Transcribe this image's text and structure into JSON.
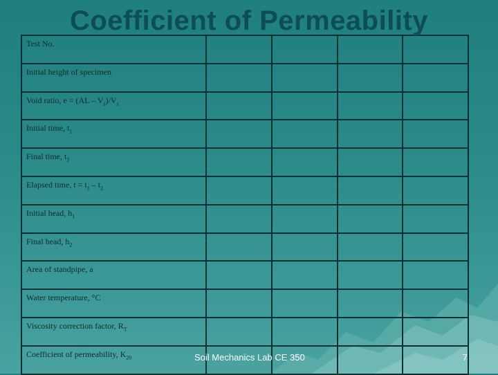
{
  "slide": {
    "title": "Coefficient of Permeability",
    "footer": "Soil Mechanics Lab CE 350",
    "page_number": "7"
  },
  "table": {
    "rows": [
      {
        "label": "Test No.",
        "sub": "",
        "tail": ""
      },
      {
        "label": "Initial height of specimen",
        "sub": "",
        "tail": ""
      },
      {
        "label": "Void ratio, e = (AL – V",
        "sub": "s",
        "tail": ")/V",
        "sub2": "s"
      },
      {
        "label": "Initial time, t",
        "sub": "1",
        "tail": ""
      },
      {
        "label": "Final time, t",
        "sub": "2",
        "tail": ""
      },
      {
        "label": "Elapsed time, t = t",
        "sub": "1",
        "tail": " – t",
        "sub2": "2"
      },
      {
        "label": "Initial head, h",
        "sub": "1",
        "tail": ""
      },
      {
        "label": "Final head, h",
        "sub": "2",
        "tail": ""
      },
      {
        "label": "Area of standpipe, a",
        "sub": "",
        "tail": ""
      },
      {
        "label": "Water temperature, °C",
        "sub": "",
        "tail": ""
      },
      {
        "label": "Viscosity correction factor, R",
        "sub": "T",
        "tail": ""
      },
      {
        "label": "Coefficient of permeability, K",
        "sub": "20",
        "tail": ""
      }
    ]
  }
}
